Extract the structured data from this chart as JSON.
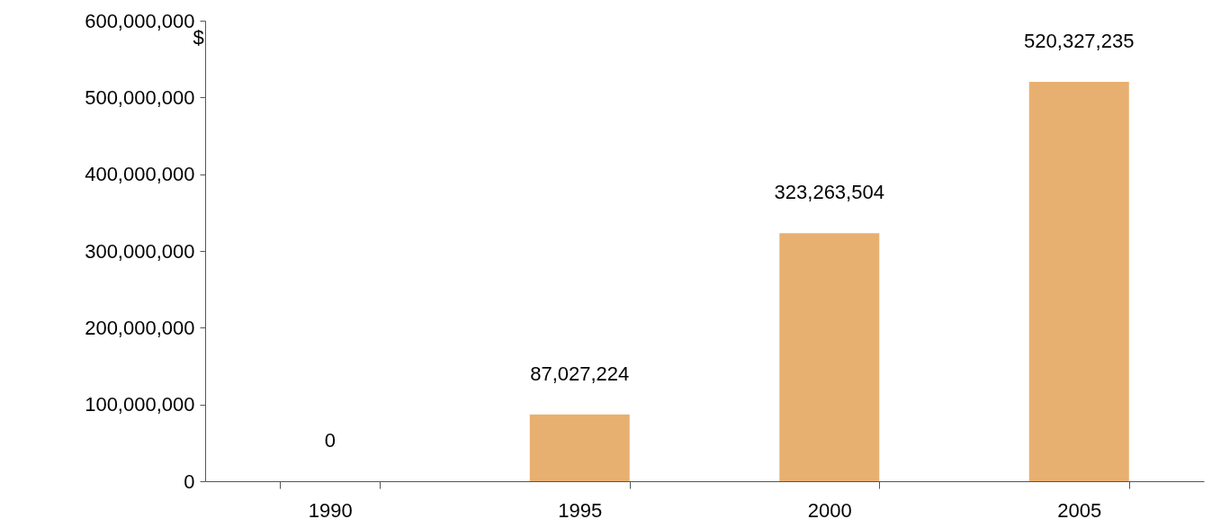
{
  "chart_data": {
    "type": "bar",
    "ylabel": "$",
    "categories": [
      "1990",
      "1995",
      "2000",
      "2005"
    ],
    "values": [
      0,
      87027224,
      323263504,
      520327235
    ],
    "value_labels": [
      "0",
      "87,027,224",
      "323,263,504",
      "520,327,235"
    ],
    "color": "#e8b070",
    "ylim": [
      0,
      600000000
    ],
    "yticks": [
      {
        "value": 0,
        "label": "0"
      },
      {
        "value": 100000000,
        "label": "100,000,000"
      },
      {
        "value": 200000000,
        "label": "200,000,000"
      },
      {
        "value": 300000000,
        "label": "300,000,000"
      },
      {
        "value": 400000000,
        "label": "400,000,000"
      },
      {
        "value": 500000000,
        "label": "500,000,000"
      },
      {
        "value": 600000000,
        "label": "600,000,000"
      }
    ],
    "grid": false
  }
}
